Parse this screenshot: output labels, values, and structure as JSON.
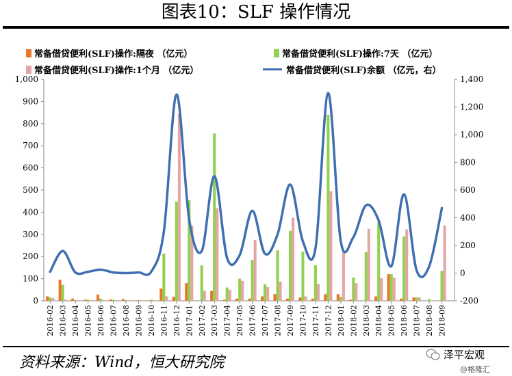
{
  "title": "图表10：SLF 操作情况",
  "legend": {
    "overnight": "常备借贷便利(SLF)操作:隔夜 （亿元）",
    "seven_day": "常备借贷便利(SLF)操作:7天 （亿元）",
    "one_month": "常备借贷便利(SLF)操作:1个月 （亿元）",
    "balance": "常备借贷便利(SLF)余额 （亿元，右）"
  },
  "source": "资料来源：Wind，恒大研究院",
  "brand": "泽平宏观",
  "brand_sub": "@格隆汇",
  "colors": {
    "overnight": "#E8762D",
    "seven_day": "#92D050",
    "one_month": "#E6A5A5",
    "balance": "#3F6FB0"
  },
  "chart_data": {
    "type": "bar",
    "x_ticks": [
      "2016-02",
      "2016-03",
      "2016-04",
      "2016-05",
      "2016-06",
      "2016-07",
      "2016-08",
      "2016-09",
      "2016-10",
      "2016-11",
      "2016-12",
      "2017-01",
      "2017-02",
      "2017-03",
      "2017-04",
      "2017-05",
      "2017-06",
      "2017-07",
      "2017-08",
      "2017-09",
      "2017-10",
      "2017-11",
      "2017-12",
      "2018-01",
      "2018-02",
      "2018-03",
      "2018-04",
      "2018-05",
      "2018-06",
      "2018-07",
      "2018-08",
      "2018-09"
    ],
    "y_left": {
      "range": [
        0,
        1000
      ],
      "ticks": [
        "0",
        "100",
        "200",
        "300",
        "400",
        "500",
        "600",
        "700",
        "800",
        "900",
        "1,000"
      ]
    },
    "y_right": {
      "range": [
        -200,
        1400
      ],
      "ticks": [
        "-200",
        "0",
        "200",
        "400",
        "600",
        "800",
        "1,000",
        "1,200",
        "1,400"
      ]
    },
    "series": [
      {
        "name": "常备借贷便利(SLF)操作:隔夜 （亿元）",
        "axis": "left",
        "type": "bar",
        "values": [
          20,
          95,
          10,
          5,
          28,
          6,
          8,
          2,
          2,
          55,
          18,
          80,
          0,
          45,
          5,
          10,
          10,
          20,
          30,
          10,
          15,
          10,
          30,
          30,
          5,
          0,
          20,
          120,
          10,
          15,
          0,
          0
        ]
      },
      {
        "name": "常备借贷便利(SLF)操作:7天 （亿元）",
        "axis": "left",
        "type": "bar",
        "values": [
          15,
          72,
          3,
          5,
          10,
          5,
          3,
          3,
          5,
          213,
          448,
          455,
          160,
          755,
          60,
          100,
          185,
          75,
          228,
          315,
          222,
          160,
          840,
          18,
          105,
          220,
          355,
          120,
          290,
          15,
          8,
          135
        ]
      },
      {
        "name": "常备借贷便利(SLF)操作:1个月 （亿元）",
        "axis": "left",
        "type": "bar",
        "values": [
          12,
          5,
          3,
          3,
          3,
          3,
          3,
          3,
          3,
          20,
          845,
          338,
          45,
          418,
          50,
          90,
          275,
          62,
          87,
          375,
          20,
          77,
          495,
          223,
          80,
          325,
          102,
          105,
          322,
          15,
          2,
          340
        ]
      },
      {
        "name": "常备借贷便利(SLF)余额 （亿元，右）",
        "axis": "right",
        "type": "line",
        "values": [
          10,
          160,
          5,
          10,
          25,
          5,
          0,
          5,
          10,
          300,
          1290,
          390,
          160,
          700,
          110,
          130,
          450,
          140,
          280,
          640,
          230,
          180,
          1300,
          230,
          260,
          490,
          380,
          50,
          570,
          20,
          50,
          470
        ]
      }
    ]
  }
}
